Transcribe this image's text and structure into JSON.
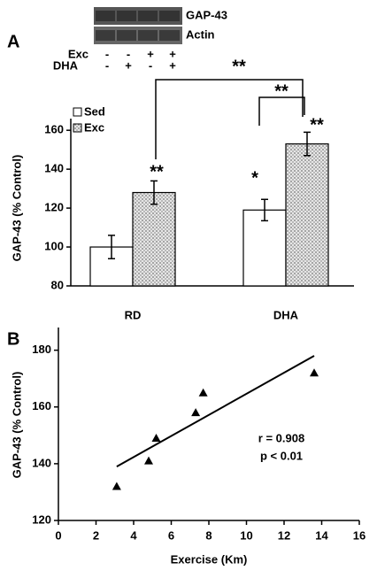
{
  "chart_data": [
    {
      "type": "bar",
      "panel": "A",
      "ylabel": "GAP-43 (% Control)",
      "categories": [
        "RD",
        "DHA"
      ],
      "series": [
        {
          "name": "Sed",
          "color": "#ffffff",
          "values": [
            100,
            119
          ],
          "errors": [
            6,
            5.5
          ]
        },
        {
          "name": "Exc",
          "color": "#9a9a9a",
          "values": [
            128,
            153
          ],
          "errors": [
            6,
            6
          ]
        }
      ],
      "ylim": [
        80,
        166
      ],
      "yticks": [
        80,
        100,
        120,
        140,
        160
      ],
      "annotations": [
        "**",
        "*",
        "**",
        "**",
        "**"
      ],
      "blot": {
        "bands": [
          "GAP-43",
          "Actin"
        ],
        "rows": [
          {
            "label": "Exc",
            "signs": [
              "-",
              "-",
              "+",
              "+"
            ]
          },
          {
            "label": "DHA",
            "signs": [
              "-",
              "+",
              "-",
              "+"
            ]
          }
        ]
      }
    },
    {
      "type": "scatter",
      "panel": "B",
      "xlabel": "Exercise (Km)",
      "ylabel": "GAP-43 (% Control)",
      "x": [
        3.1,
        4.8,
        5.2,
        7.3,
        7.7,
        13.6
      ],
      "y": [
        132,
        141,
        149,
        158,
        165,
        172
      ],
      "color": "#000000",
      "fit": {
        "x": [
          3.1,
          13.6
        ],
        "y": [
          139,
          178
        ]
      },
      "xlim": [
        0,
        16
      ],
      "xticks": [
        0,
        2,
        4,
        6,
        8,
        10,
        12,
        14,
        16
      ],
      "ylim": [
        120,
        188
      ],
      "yticks": [
        120,
        140,
        160,
        180
      ],
      "annotations": [
        "r = 0.908",
        "p < 0.01"
      ]
    }
  ]
}
